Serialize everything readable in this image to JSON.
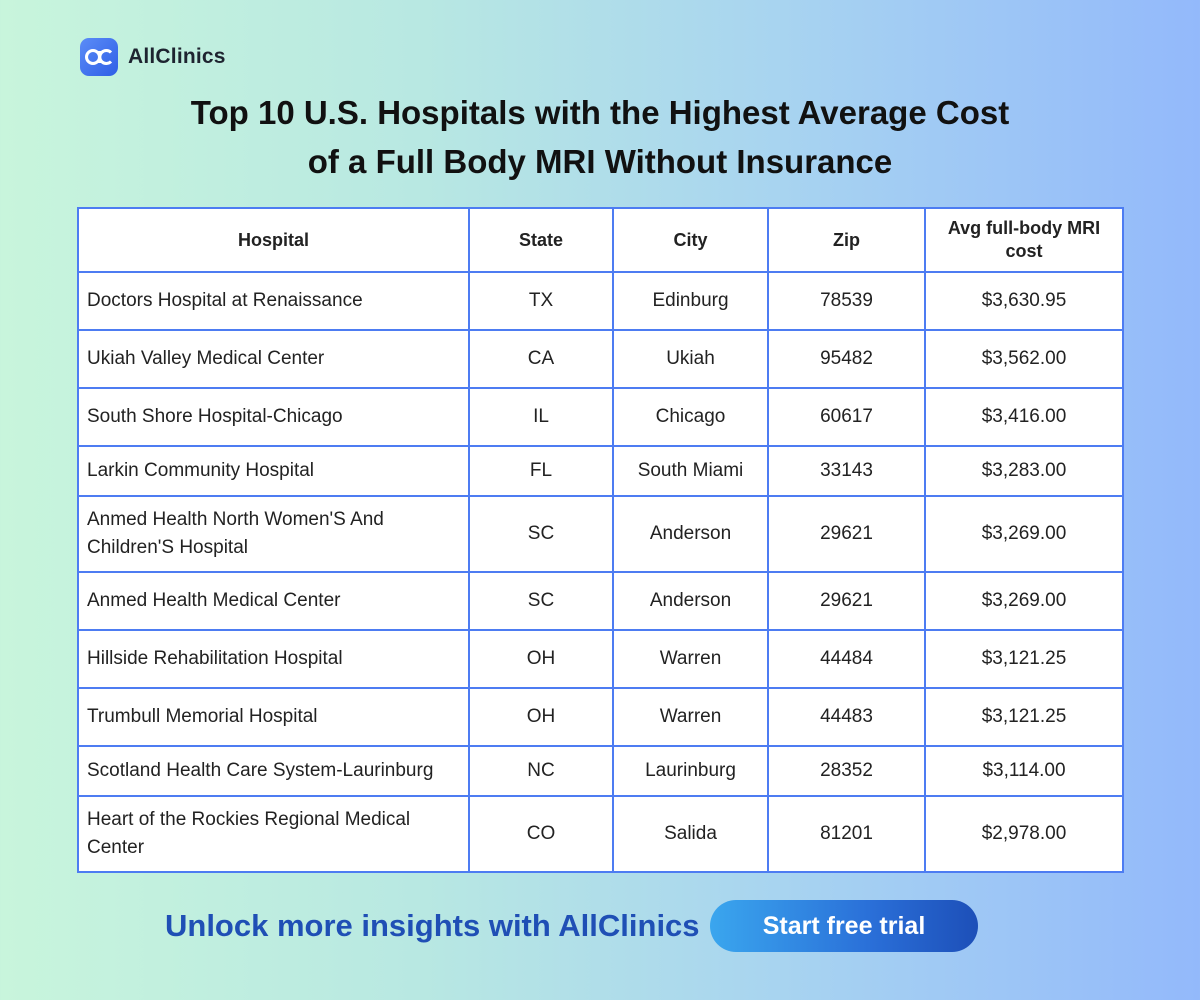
{
  "brand": {
    "name": "AllClinics",
    "logo_text": "ac",
    "logo_color": "#3b6ff0"
  },
  "title": {
    "line1": "Top 10 U.S. Hospitals with the Highest Average Cost",
    "line2": "of a Full Body MRI Without Insurance"
  },
  "table": {
    "headers": [
      "Hospital",
      "State",
      "City",
      "Zip",
      "Avg full-body MRI cost"
    ],
    "rows": [
      {
        "hospital": "Doctors Hospital at Renaissance",
        "state": "TX",
        "city": "Edinburg",
        "zip": "78539",
        "cost": "$3,630.95"
      },
      {
        "hospital": "Ukiah Valley Medical Center",
        "state": "CA",
        "city": "Ukiah",
        "zip": "95482",
        "cost": "$3,562.00"
      },
      {
        "hospital": "South Shore Hospital-Chicago",
        "state": "IL",
        "city": "Chicago",
        "zip": "60617",
        "cost": "$3,416.00"
      },
      {
        "hospital": "Larkin Community Hospital",
        "state": "FL",
        "city": "South Miami",
        "zip": "33143",
        "cost": "$3,283.00"
      },
      {
        "hospital": "Anmed Health North Women'S And Children'S Hospital",
        "state": "SC",
        "city": "Anderson",
        "zip": "29621",
        "cost": "$3,269.00"
      },
      {
        "hospital": "Anmed Health Medical Center",
        "state": "SC",
        "city": "Anderson",
        "zip": "29621",
        "cost": "$3,269.00"
      },
      {
        "hospital": "Hillside Rehabilitation Hospital",
        "state": "OH",
        "city": "Warren",
        "zip": "44484",
        "cost": "$3,121.25"
      },
      {
        "hospital": "Trumbull Memorial Hospital",
        "state": "OH",
        "city": "Warren",
        "zip": "44483",
        "cost": "$3,121.25"
      },
      {
        "hospital": "Scotland Health Care System-Laurinburg",
        "state": "NC",
        "city": "Laurinburg",
        "zip": "28352",
        "cost": "$3,114.00"
      },
      {
        "hospital": "Heart of the Rockies Regional Medical Center",
        "state": "CO",
        "city": "Salida",
        "zip": "81201",
        "cost": "$2,978.00"
      }
    ],
    "border_color": "#4d7cf2"
  },
  "cta": {
    "text": "Unlock more insights with AllClinics",
    "button_label": "Start free trial",
    "text_color": "#1f4fb5"
  }
}
